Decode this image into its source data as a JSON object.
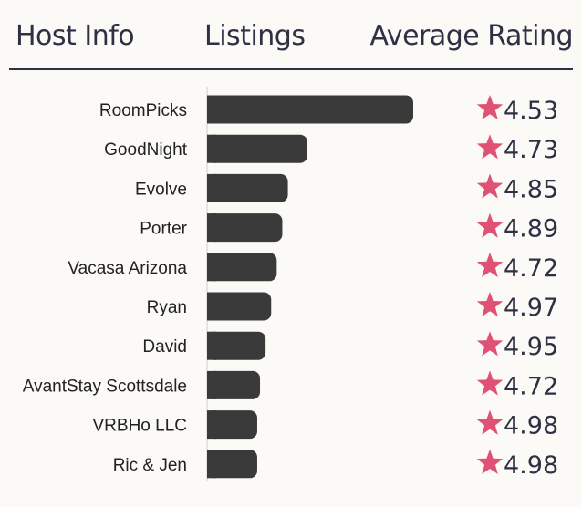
{
  "header": {
    "host_info": "Host Info",
    "listings": "Listings",
    "average_rating": "Average Rating"
  },
  "colors": {
    "bar": "#3a3a3a",
    "star": "#e05275",
    "text": "#2f3044",
    "background": "#fbfaf6"
  },
  "chart_data": {
    "type": "bar",
    "orientation": "horizontal",
    "categories": [
      "RoomPicks",
      "GoodNight",
      "Evolve",
      "Porter",
      "Vacasa Arizona",
      "Ryan",
      "David",
      "AvantStay Scottsdale",
      "VRBHo LLC",
      "Ric & Jen"
    ],
    "values": [
      74,
      36,
      29,
      27,
      25,
      23,
      21,
      19,
      18,
      18
    ],
    "ratings": [
      "4.53",
      "4.73",
      "4.85",
      "4.89",
      "4.72",
      "4.97",
      "4.95",
      "4.72",
      "4.98",
      "4.98"
    ],
    "xlim": [
      0,
      74
    ],
    "grid": false,
    "icon": "star-icon"
  }
}
